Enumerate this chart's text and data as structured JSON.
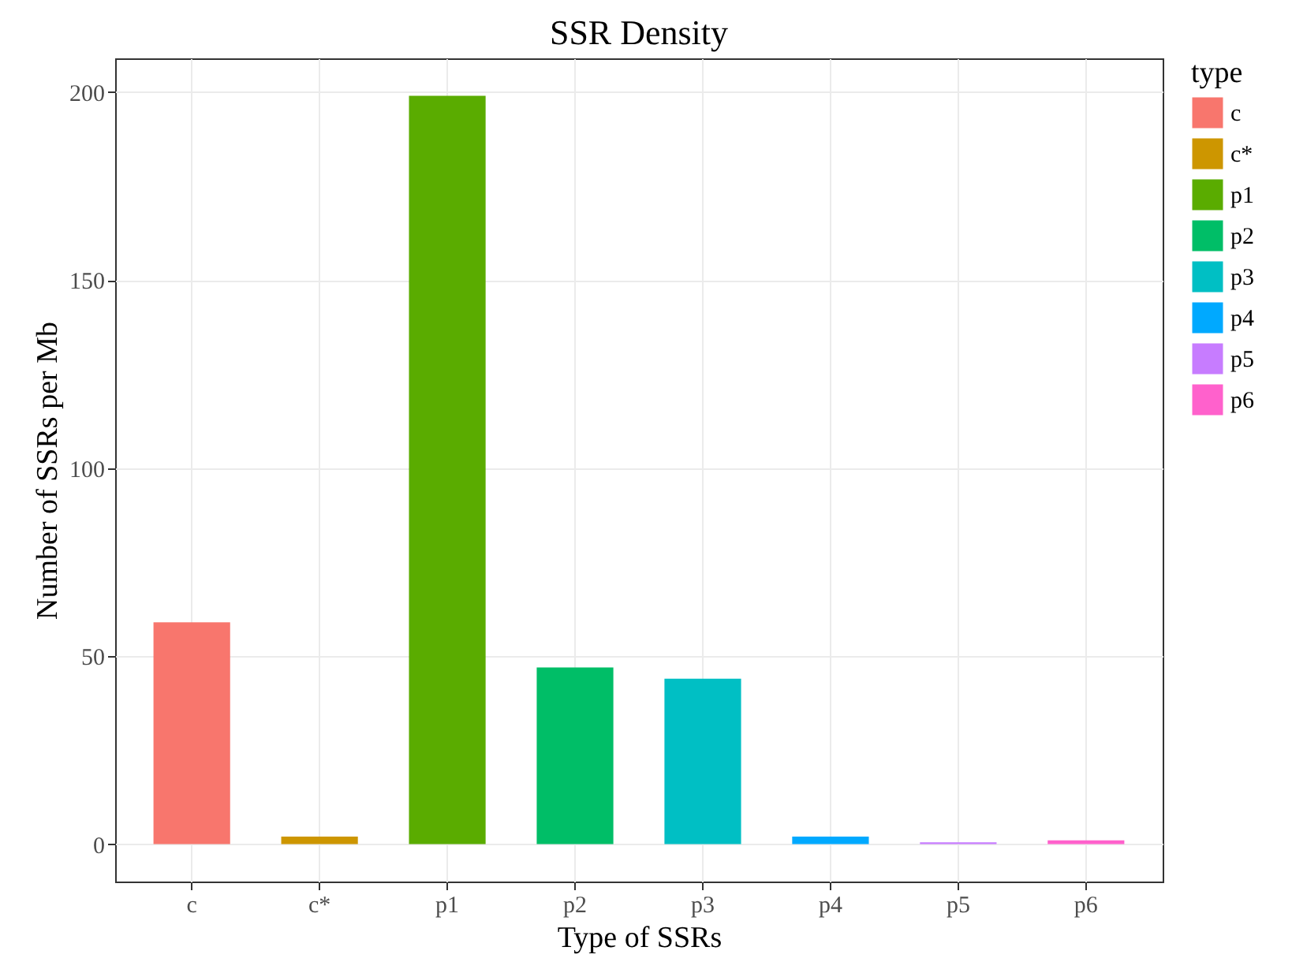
{
  "chart_data": {
    "type": "bar",
    "title": "SSR Density",
    "xlabel": "Type of SSRs",
    "ylabel": "Number of SSRs per Mb",
    "legend_title": "type",
    "categories": [
      "c",
      "c*",
      "p1",
      "p2",
      "p3",
      "p4",
      "p5",
      "p6"
    ],
    "series": [
      {
        "name": "c",
        "color": "#f8766d",
        "values": [
          59,
          null,
          null,
          null,
          null,
          null,
          null,
          null
        ]
      },
      {
        "name": "c*",
        "color": "#cd9600",
        "values": [
          null,
          2,
          null,
          null,
          null,
          null,
          null,
          null
        ]
      },
      {
        "name": "p1",
        "color": "#5aac00",
        "values": [
          null,
          null,
          199,
          null,
          null,
          null,
          null,
          null
        ]
      },
      {
        "name": "p2",
        "color": "#00be67",
        "values": [
          null,
          null,
          null,
          47,
          null,
          null,
          null,
          null
        ]
      },
      {
        "name": "p3",
        "color": "#00bfc4",
        "values": [
          null,
          null,
          null,
          null,
          44,
          null,
          null,
          null
        ]
      },
      {
        "name": "p4",
        "color": "#00a9ff",
        "values": [
          null,
          null,
          null,
          null,
          null,
          2,
          null,
          null
        ]
      },
      {
        "name": "p5",
        "color": "#c77cff",
        "values": [
          null,
          null,
          null,
          null,
          null,
          null,
          0.5,
          null
        ]
      },
      {
        "name": "p6",
        "color": "#ff61cc",
        "values": [
          null,
          null,
          null,
          null,
          null,
          null,
          null,
          1
        ]
      }
    ],
    "ylim": [
      -9.95,
      208.95
    ],
    "yticks": [
      0,
      50,
      100,
      150,
      200
    ],
    "grid": true,
    "legend": "right"
  }
}
